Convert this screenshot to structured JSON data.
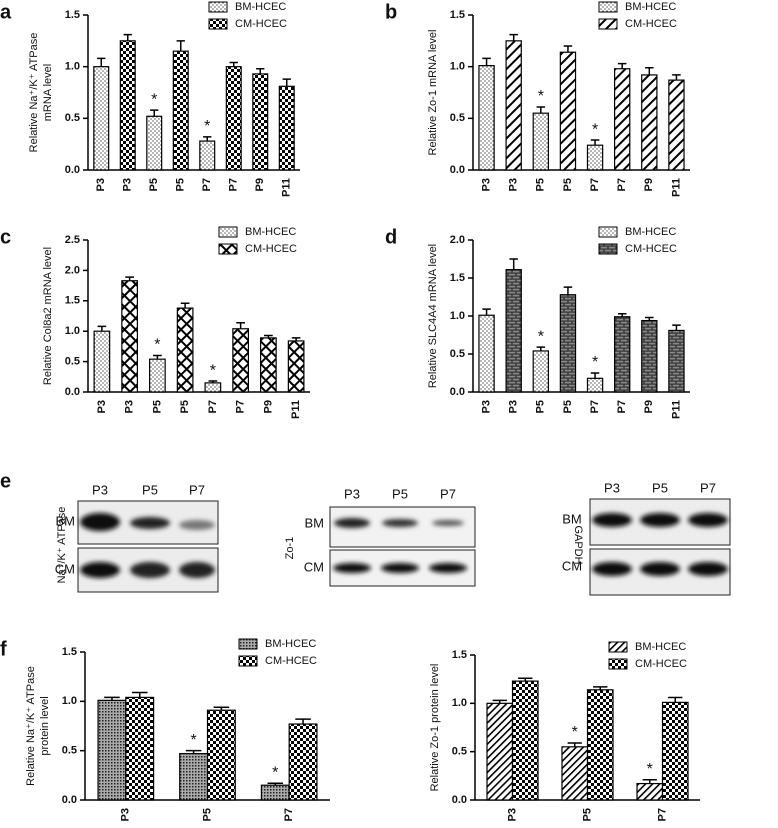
{
  "chart_data": [
    {
      "type": "bar",
      "panel": "a",
      "y_label": [
        "Relative Na⁺/K⁺ ATPase",
        "mRNA level"
      ],
      "categories": [
        "P3",
        "P3",
        "P5",
        "P5",
        "P7",
        "P7",
        "P9",
        "P11"
      ],
      "ylim": [
        0,
        1.5
      ],
      "yticks": [
        {
          "value": 0,
          "label": "0.0"
        },
        0.5,
        {
          "value": 1,
          "label": "1.0"
        },
        1.5
      ],
      "series": [
        {
          "name": "BM-HCEC",
          "color": "#000000",
          "pattern": "dots",
          "values": [
            1.0,
            null,
            0.52,
            null,
            0.28,
            null,
            null,
            null
          ],
          "errors": [
            0.08,
            null,
            0.06,
            null,
            0.04,
            null,
            null,
            null
          ],
          "annotations": [
            null,
            null,
            "*",
            null,
            "*",
            null,
            null,
            null
          ]
        },
        {
          "name": "CM-HCEC",
          "color": "#000000",
          "pattern": "checker",
          "values": [
            null,
            1.25,
            null,
            1.15,
            null,
            1.0,
            0.93,
            0.81
          ],
          "errors": [
            null,
            0.06,
            null,
            0.1,
            null,
            0.04,
            0.05,
            0.07
          ]
        }
      ]
    },
    {
      "type": "bar",
      "panel": "b",
      "y_label": [
        "Relative Zo-1 mRNA level"
      ],
      "categories": [
        "P3",
        "P3",
        "P5",
        "P5",
        "P7",
        "P7",
        "P9",
        "P11"
      ],
      "ylim": [
        0,
        1.5
      ],
      "yticks": [
        {
          "value": 0,
          "label": "0.0"
        },
        0.5,
        {
          "value": 1,
          "label": "1.0"
        },
        1.5
      ],
      "series": [
        {
          "name": "BM-HCEC",
          "color": "#000000",
          "pattern": "dots",
          "values": [
            1.01,
            null,
            0.55,
            null,
            0.24,
            null,
            null,
            null
          ],
          "errors": [
            0.07,
            null,
            0.06,
            null,
            0.05,
            null,
            null,
            null
          ],
          "annotations": [
            null,
            null,
            "*",
            null,
            "*",
            null,
            null,
            null
          ]
        },
        {
          "name": "CM-HCEC",
          "color": "#000000",
          "pattern": "wide-diag",
          "values": [
            null,
            1.25,
            null,
            1.14,
            null,
            0.98,
            0.92,
            0.87
          ],
          "errors": [
            null,
            0.06,
            null,
            0.06,
            null,
            0.05,
            0.07,
            0.05
          ]
        }
      ]
    },
    {
      "type": "bar",
      "panel": "c",
      "y_label": [
        "Relative Col8a2 mRNA level"
      ],
      "categories": [
        "P3",
        "P3",
        "P5",
        "P5",
        "P7",
        "P7",
        "P9",
        "P11"
      ],
      "ylim": [
        0,
        2.5
      ],
      "yticks": [
        {
          "value": 0,
          "label": "0.0"
        },
        0.5,
        {
          "value": 1,
          "label": "1.0"
        },
        1.5,
        {
          "value": 2,
          "label": "2.0"
        },
        2.5
      ],
      "series": [
        {
          "name": "BM-HCEC",
          "color": "#000000",
          "pattern": "dots",
          "values": [
            1.0,
            null,
            0.54,
            null,
            0.15,
            null,
            null,
            null
          ],
          "errors": [
            0.08,
            null,
            0.06,
            null,
            0.03,
            null,
            null,
            null
          ],
          "annotations": [
            null,
            null,
            "*",
            null,
            "*",
            null,
            null,
            null
          ]
        },
        {
          "name": "CM-HCEC",
          "color": "#000000",
          "pattern": "crosshatch",
          "values": [
            null,
            1.83,
            null,
            1.38,
            null,
            1.04,
            0.89,
            0.84
          ],
          "errors": [
            null,
            0.06,
            null,
            0.08,
            null,
            0.1,
            0.04,
            0.05
          ]
        }
      ]
    },
    {
      "type": "bar",
      "panel": "d",
      "y_label": [
        "Relative SLC4A4 mRNA level"
      ],
      "categories": [
        "P3",
        "P3",
        "P5",
        "P5",
        "P7",
        "P7",
        "P9",
        "P11"
      ],
      "ylim": [
        0,
        2.0
      ],
      "yticks": [
        {
          "value": 0,
          "label": "0.0"
        },
        0.5,
        {
          "value": 1,
          "label": "1.0"
        },
        1.5,
        {
          "value": 2,
          "label": "2.0"
        }
      ],
      "series": [
        {
          "name": "BM-HCEC",
          "color": "#000000",
          "pattern": "dots",
          "values": [
            1.01,
            null,
            0.54,
            null,
            0.18,
            null,
            null,
            null
          ],
          "errors": [
            0.08,
            null,
            0.05,
            null,
            0.07,
            null,
            null,
            null
          ],
          "annotations": [
            null,
            null,
            "*",
            null,
            "*",
            null,
            null,
            null
          ]
        },
        {
          "name": "CM-HCEC",
          "color": "#000000",
          "pattern": "brick",
          "values": [
            null,
            1.61,
            null,
            1.28,
            null,
            0.99,
            0.94,
            0.81
          ],
          "errors": [
            null,
            0.14,
            null,
            0.1,
            null,
            0.04,
            0.04,
            0.07
          ]
        }
      ]
    },
    {
      "type": "bar",
      "panel": "f",
      "y_label": [
        "Relative Na⁺/K⁺ ATPase",
        "protein level"
      ],
      "categories": [
        "P3",
        "P5",
        "P7"
      ],
      "ylim": [
        0,
        1.5
      ],
      "yticks": [
        {
          "value": 0,
          "label": "0.0"
        },
        0.5,
        {
          "value": 1,
          "label": "1.0"
        },
        1.5
      ],
      "series": [
        {
          "name": "BM-HCEC",
          "color": "#000000",
          "pattern": "fine-grid",
          "values": [
            1.01,
            0.47,
            0.15
          ],
          "errors": [
            0.03,
            0.03,
            0.02
          ],
          "annotations": [
            null,
            "*",
            "*"
          ]
        },
        {
          "name": "CM-HCEC",
          "color": "#000000",
          "pattern": "checker",
          "values": [
            1.04,
            0.91,
            0.77
          ],
          "errors": [
            0.05,
            0.03,
            0.05
          ]
        }
      ]
    },
    {
      "type": "bar",
      "y_label": [
        "Relative Zo-1 protein level"
      ],
      "categories": [
        "P3",
        "P5",
        "P7"
      ],
      "ylim": [
        0,
        1.5
      ],
      "yticks": [
        {
          "value": 0,
          "label": "0.0"
        },
        0.5,
        {
          "value": 1,
          "label": "1.0"
        },
        1.5
      ],
      "series": [
        {
          "name": "BM-HCEC",
          "color": "#000000",
          "pattern": "diag",
          "values": [
            1.0,
            0.55,
            0.17
          ],
          "errors": [
            0.03,
            0.04,
            0.04
          ],
          "annotations": [
            null,
            "*",
            "*"
          ]
        },
        {
          "name": "CM-HCEC",
          "color": "#000000",
          "pattern": "checker",
          "values": [
            1.23,
            1.14,
            1.01
          ],
          "errors": [
            0.03,
            0.03,
            0.05
          ]
        }
      ]
    }
  ],
  "blot_panel": {
    "label": "e",
    "blots": [
      {
        "y_label": "Na⁺/K⁺ ATPase",
        "lanes": [
          "P3",
          "P5",
          "P7"
        ],
        "rows": [
          "BM",
          "CM"
        ]
      },
      {
        "y_label": "Zo-1",
        "lanes": [
          "P3",
          "P5",
          "P7"
        ],
        "rows": [
          "BM",
          "CM"
        ]
      },
      {
        "y_label": "GAPDH",
        "lanes": [
          "P3",
          "P5",
          "P7"
        ],
        "rows": [
          "BM",
          "CM"
        ]
      }
    ]
  }
}
